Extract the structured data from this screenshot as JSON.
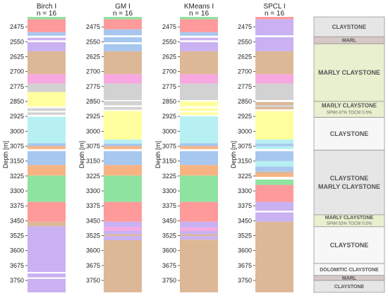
{
  "chart_data": {
    "type": "table",
    "ylabel": "Depth [m]",
    "ylim": [
      2425,
      3810
    ],
    "yticks": [
      2475,
      2550,
      2625,
      2700,
      2775,
      2850,
      2925,
      3000,
      3075,
      3150,
      3225,
      3300,
      3375,
      3450,
      3525,
      3600,
      3675,
      3750
    ],
    "colors": {
      "green": "#8fe3a0",
      "red": "#ff9a9a",
      "blue": "#a7c7ef",
      "white": "#ffffff",
      "tan": "#ddb896",
      "pink": "#f7a8e0",
      "gray": "#d2d2d2",
      "yellow": "#fffe9e",
      "cyan": "#b6f0f3",
      "orange": "#f8b383",
      "purple": "#c9b1f2",
      "lith_gray": "#e6e6e6",
      "lith_marl": "#d8c9c9",
      "lith_green": "#e9f0cf",
      "lith_white": "#f7f7f7"
    },
    "columns": [
      {
        "title": "Birch I",
        "subtitle": "n = 16",
        "intervals": [
          {
            "top": 2425,
            "base": 2437,
            "class": "green"
          },
          {
            "top": 2437,
            "base": 2502,
            "class": "red"
          },
          {
            "top": 2502,
            "base": 2520,
            "class": "blue"
          },
          {
            "top": 2520,
            "base": 2530,
            "class": "white"
          },
          {
            "top": 2530,
            "base": 2543,
            "class": "purple"
          },
          {
            "top": 2543,
            "base": 2552,
            "class": "white"
          },
          {
            "top": 2552,
            "base": 2598,
            "class": "purple"
          },
          {
            "top": 2598,
            "base": 2713,
            "class": "tan"
          },
          {
            "top": 2713,
            "base": 2760,
            "class": "pink"
          },
          {
            "top": 2760,
            "base": 2803,
            "class": "gray"
          },
          {
            "top": 2803,
            "base": 2876,
            "class": "yellow"
          },
          {
            "top": 2876,
            "base": 2884,
            "class": "white"
          },
          {
            "top": 2884,
            "base": 2898,
            "class": "gray"
          },
          {
            "top": 2898,
            "base": 2905,
            "class": "white"
          },
          {
            "top": 2905,
            "base": 2918,
            "class": "gray"
          },
          {
            "top": 2918,
            "base": 2927,
            "class": "white"
          },
          {
            "top": 2927,
            "base": 3060,
            "class": "cyan"
          },
          {
            "top": 3060,
            "base": 3075,
            "class": "blue"
          },
          {
            "top": 3075,
            "base": 3090,
            "class": "orange"
          },
          {
            "top": 3090,
            "base": 3100,
            "class": "white"
          },
          {
            "top": 3100,
            "base": 3170,
            "class": "blue"
          },
          {
            "top": 3170,
            "base": 3223,
            "class": "orange"
          },
          {
            "top": 3223,
            "base": 3355,
            "class": "green"
          },
          {
            "top": 3355,
            "base": 3455,
            "class": "red"
          },
          {
            "top": 3455,
            "base": 3478,
            "class": "tan"
          },
          {
            "top": 3478,
            "base": 3708,
            "class": "purple"
          },
          {
            "top": 3708,
            "base": 3715,
            "class": "white"
          },
          {
            "top": 3715,
            "base": 3735,
            "class": "purple"
          },
          {
            "top": 3735,
            "base": 3742,
            "class": "white"
          },
          {
            "top": 3742,
            "base": 3810,
            "class": "purple"
          }
        ]
      },
      {
        "title": "GM I",
        "subtitle": "n = 16",
        "intervals": [
          {
            "top": 2425,
            "base": 2437,
            "class": "green"
          },
          {
            "top": 2437,
            "base": 2488,
            "class": "red"
          },
          {
            "top": 2488,
            "base": 2518,
            "class": "blue"
          },
          {
            "top": 2518,
            "base": 2527,
            "class": "white"
          },
          {
            "top": 2527,
            "base": 2553,
            "class": "blue"
          },
          {
            "top": 2553,
            "base": 2562,
            "class": "white"
          },
          {
            "top": 2562,
            "base": 2598,
            "class": "blue"
          },
          {
            "top": 2598,
            "base": 2713,
            "class": "tan"
          },
          {
            "top": 2713,
            "base": 2760,
            "class": "pink"
          },
          {
            "top": 2760,
            "base": 2843,
            "class": "gray"
          },
          {
            "top": 2843,
            "base": 2848,
            "class": "white"
          },
          {
            "top": 2848,
            "base": 2870,
            "class": "gray"
          },
          {
            "top": 2870,
            "base": 2878,
            "class": "white"
          },
          {
            "top": 2878,
            "base": 2892,
            "class": "gray"
          },
          {
            "top": 2892,
            "base": 2898,
            "class": "white"
          },
          {
            "top": 2898,
            "base": 3042,
            "class": "yellow"
          },
          {
            "top": 3042,
            "base": 3062,
            "class": "cyan"
          },
          {
            "top": 3062,
            "base": 3075,
            "class": "blue"
          },
          {
            "top": 3075,
            "base": 3090,
            "class": "orange"
          },
          {
            "top": 3090,
            "base": 3100,
            "class": "white"
          },
          {
            "top": 3100,
            "base": 3170,
            "class": "blue"
          },
          {
            "top": 3170,
            "base": 3223,
            "class": "orange"
          },
          {
            "top": 3223,
            "base": 3355,
            "class": "green"
          },
          {
            "top": 3355,
            "base": 3455,
            "class": "red"
          },
          {
            "top": 3455,
            "base": 3482,
            "class": "purple"
          },
          {
            "top": 3482,
            "base": 3500,
            "class": "pink"
          },
          {
            "top": 3500,
            "base": 3518,
            "class": "purple"
          },
          {
            "top": 3518,
            "base": 3527,
            "class": "tan"
          },
          {
            "top": 3527,
            "base": 3548,
            "class": "purple"
          },
          {
            "top": 3548,
            "base": 3810,
            "class": "tan"
          }
        ]
      },
      {
        "title": "KMeans I",
        "subtitle": "n = 16",
        "intervals": [
          {
            "top": 2425,
            "base": 2437,
            "class": "green"
          },
          {
            "top": 2437,
            "base": 2502,
            "class": "red"
          },
          {
            "top": 2502,
            "base": 2520,
            "class": "blue"
          },
          {
            "top": 2520,
            "base": 2530,
            "class": "white"
          },
          {
            "top": 2530,
            "base": 2543,
            "class": "purple"
          },
          {
            "top": 2543,
            "base": 2552,
            "class": "white"
          },
          {
            "top": 2552,
            "base": 2598,
            "class": "purple"
          },
          {
            "top": 2598,
            "base": 2713,
            "class": "tan"
          },
          {
            "top": 2713,
            "base": 2760,
            "class": "pink"
          },
          {
            "top": 2760,
            "base": 2843,
            "class": "gray"
          },
          {
            "top": 2843,
            "base": 2850,
            "class": "white"
          },
          {
            "top": 2850,
            "base": 2876,
            "class": "yellow"
          },
          {
            "top": 2876,
            "base": 2884,
            "class": "white"
          },
          {
            "top": 2884,
            "base": 2898,
            "class": "yellow"
          },
          {
            "top": 2898,
            "base": 2905,
            "class": "white"
          },
          {
            "top": 2905,
            "base": 2918,
            "class": "yellow"
          },
          {
            "top": 2918,
            "base": 2925,
            "class": "white"
          },
          {
            "top": 2925,
            "base": 3060,
            "class": "cyan"
          },
          {
            "top": 3060,
            "base": 3075,
            "class": "blue"
          },
          {
            "top": 3075,
            "base": 3090,
            "class": "orange"
          },
          {
            "top": 3090,
            "base": 3100,
            "class": "white"
          },
          {
            "top": 3100,
            "base": 3170,
            "class": "blue"
          },
          {
            "top": 3170,
            "base": 3223,
            "class": "orange"
          },
          {
            "top": 3223,
            "base": 3355,
            "class": "green"
          },
          {
            "top": 3355,
            "base": 3455,
            "class": "red"
          },
          {
            "top": 3455,
            "base": 3485,
            "class": "purple"
          },
          {
            "top": 3485,
            "base": 3502,
            "class": "pink"
          },
          {
            "top": 3502,
            "base": 3518,
            "class": "purple"
          },
          {
            "top": 3518,
            "base": 3527,
            "class": "tan"
          },
          {
            "top": 3527,
            "base": 3545,
            "class": "purple"
          },
          {
            "top": 3545,
            "base": 3810,
            "class": "tan"
          }
        ]
      },
      {
        "title": "SPCL I",
        "subtitle": "n = 16",
        "intervals": [
          {
            "top": 2425,
            "base": 2437,
            "class": "red"
          },
          {
            "top": 2437,
            "base": 2518,
            "class": "purple"
          },
          {
            "top": 2518,
            "base": 2527,
            "class": "white"
          },
          {
            "top": 2527,
            "base": 2598,
            "class": "purple"
          },
          {
            "top": 2598,
            "base": 2713,
            "class": "tan"
          },
          {
            "top": 2713,
            "base": 2760,
            "class": "pink"
          },
          {
            "top": 2760,
            "base": 2843,
            "class": "gray"
          },
          {
            "top": 2843,
            "base": 2853,
            "class": "white"
          },
          {
            "top": 2853,
            "base": 2868,
            "class": "tan"
          },
          {
            "top": 2868,
            "base": 2878,
            "class": "gray"
          },
          {
            "top": 2878,
            "base": 2890,
            "class": "tan"
          },
          {
            "top": 2890,
            "base": 2898,
            "class": "white"
          },
          {
            "top": 2898,
            "base": 3042,
            "class": "yellow"
          },
          {
            "top": 3042,
            "base": 3062,
            "class": "cyan"
          },
          {
            "top": 3062,
            "base": 3075,
            "class": "blue"
          },
          {
            "top": 3075,
            "base": 3090,
            "class": "cyan"
          },
          {
            "top": 3090,
            "base": 3100,
            "class": "white"
          },
          {
            "top": 3100,
            "base": 3150,
            "class": "blue"
          },
          {
            "top": 3150,
            "base": 3178,
            "class": "cyan"
          },
          {
            "top": 3178,
            "base": 3203,
            "class": "blue"
          },
          {
            "top": 3203,
            "base": 3215,
            "class": "tan"
          },
          {
            "top": 3215,
            "base": 3230,
            "class": "orange"
          },
          {
            "top": 3230,
            "base": 3243,
            "class": "white"
          },
          {
            "top": 3243,
            "base": 3270,
            "class": "green"
          },
          {
            "top": 3270,
            "base": 3355,
            "class": "red"
          },
          {
            "top": 3355,
            "base": 3400,
            "class": "purple"
          },
          {
            "top": 3400,
            "base": 3408,
            "class": "white"
          },
          {
            "top": 3408,
            "base": 3455,
            "class": "purple"
          },
          {
            "top": 3455,
            "base": 3810,
            "class": "tan"
          }
        ]
      }
    ],
    "lithology": [
      {
        "top": 2425,
        "base": 2525,
        "fill": "lith_gray",
        "lines": [
          "CLAYSTONE"
        ]
      },
      {
        "top": 2525,
        "base": 2560,
        "fill": "lith_marl",
        "lines": [
          "MARL"
        ]
      },
      {
        "top": 2560,
        "base": 2850,
        "fill": "lith_green",
        "lines": [
          "MARLY CLAYSTONE"
        ]
      },
      {
        "top": 2850,
        "base": 2930,
        "fill": "lith_green",
        "lines": [
          "MARLY CLAYSTONE",
          "SPWI 47% TOCW 0.5%"
        ]
      },
      {
        "top": 2930,
        "base": 3095,
        "fill": "lith_white",
        "lines": [
          "CLAYSTONE"
        ]
      },
      {
        "top": 3095,
        "base": 3420,
        "fill": "lith_gray",
        "lines": [
          "CLAYSTONE",
          "MARLY CLAYSTONE"
        ]
      },
      {
        "top": 3420,
        "base": 3480,
        "fill": "lith_green",
        "lines": [
          "MARLY CLAYSTONE",
          "SPWI 53% TOCW 0.5%"
        ]
      },
      {
        "top": 3480,
        "base": 3665,
        "fill": "lith_white",
        "lines": [
          "CLAYSTONE"
        ]
      },
      {
        "top": 3665,
        "base": 3725,
        "fill": "lith_white",
        "lines": [
          "DOLOMITIC CLAYSTONE"
        ]
      },
      {
        "top": 3725,
        "base": 3750,
        "fill": "lith_marl",
        "lines": [
          "MARL"
        ]
      },
      {
        "top": 3750,
        "base": 3810,
        "fill": "lith_gray",
        "lines": [
          "CLAYSTONE"
        ]
      }
    ]
  }
}
